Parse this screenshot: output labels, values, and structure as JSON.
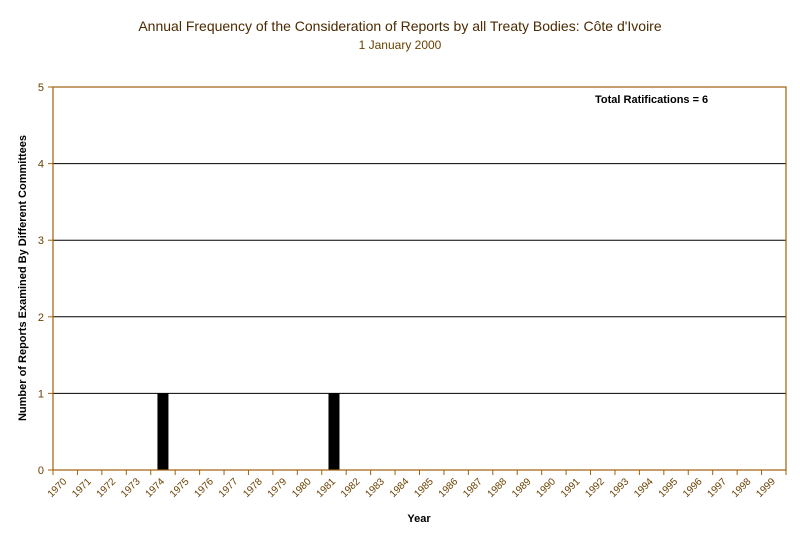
{
  "chart_data": {
    "type": "bar",
    "title": "Annual Frequency of the Consideration of Reports by all Treaty Bodies: Côte d'Ivoire",
    "subtitle": "1 January 2000",
    "xlabel": "Year",
    "ylabel": "Number of Reports Examined By Different Committees",
    "annotation": "Total Ratifications = 6",
    "categories": [
      "1970",
      "1971",
      "1972",
      "1973",
      "1974",
      "1975",
      "1976",
      "1977",
      "1978",
      "1979",
      "1980",
      "1981",
      "1982",
      "1983",
      "1984",
      "1985",
      "1986",
      "1987",
      "1988",
      "1989",
      "1990",
      "1991",
      "1992",
      "1993",
      "1994",
      "1995",
      "1996",
      "1997",
      "1998",
      "1999"
    ],
    "values": [
      0,
      0,
      0,
      0,
      1,
      0,
      0,
      0,
      0,
      0,
      0,
      1,
      0,
      0,
      0,
      0,
      0,
      0,
      0,
      0,
      0,
      0,
      0,
      0,
      0,
      0,
      0,
      0,
      0,
      0
    ],
    "ylim": [
      0,
      5
    ],
    "yticks": [
      0,
      1,
      2,
      3,
      4,
      5
    ],
    "grid": true,
    "colors": {
      "bar": "#000000",
      "axis": "#a0600a",
      "grid": "#000000",
      "tick_label": "#6b4100"
    }
  }
}
